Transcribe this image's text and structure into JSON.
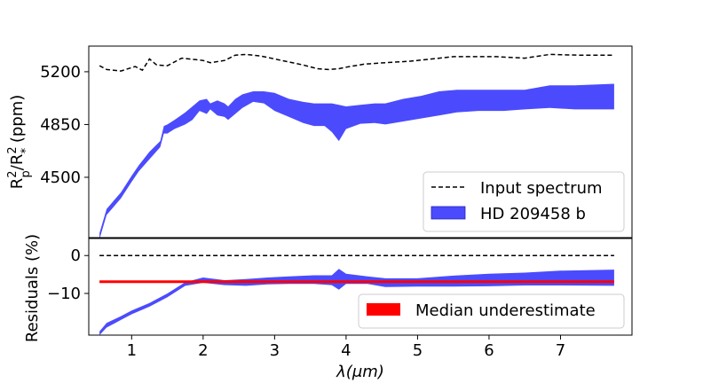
{
  "chart_data": [
    {
      "panel": "top",
      "type": "line",
      "ylabel": "R_p^2/R_*^2 (ppm)",
      "xlim": [
        0.4,
        8.0
      ],
      "ylim": [
        4100,
        5370
      ],
      "yticks": [
        4500,
        4850,
        5200
      ],
      "xticks": [],
      "grid": false,
      "legend": "bottom-right",
      "series": [
        {
          "name": "Input spectrum",
          "kind": "line",
          "style": "dashed",
          "color": "#000000",
          "x": [
            0.55,
            0.65,
            0.85,
            1.05,
            1.15,
            1.25,
            1.35,
            1.5,
            1.7,
            1.9,
            2.0,
            2.1,
            2.3,
            2.45,
            2.6,
            2.8,
            3.0,
            3.2,
            3.4,
            3.6,
            3.75,
            3.9,
            4.0,
            4.25,
            4.55,
            4.9,
            5.2,
            5.5,
            5.75,
            6.1,
            6.5,
            6.85,
            7.25,
            7.75
          ],
          "y": [
            5240,
            5215,
            5205,
            5235,
            5210,
            5285,
            5245,
            5240,
            5290,
            5280,
            5275,
            5260,
            5275,
            5310,
            5315,
            5305,
            5285,
            5265,
            5245,
            5220,
            5215,
            5220,
            5230,
            5250,
            5260,
            5270,
            5285,
            5300,
            5300,
            5300,
            5290,
            5315,
            5310,
            5310
          ]
        },
        {
          "name": "HD 209458 b",
          "kind": "band",
          "color": "#4b4bfd",
          "x": [
            0.55,
            0.65,
            0.85,
            1.0,
            1.1,
            1.25,
            1.4,
            1.45,
            1.5,
            1.6,
            1.75,
            1.85,
            1.95,
            2.05,
            2.1,
            2.2,
            2.3,
            2.35,
            2.45,
            2.55,
            2.7,
            2.85,
            3.0,
            3.2,
            3.4,
            3.55,
            3.7,
            3.8,
            3.9,
            4.0,
            4.2,
            4.4,
            4.55,
            4.8,
            5.05,
            5.3,
            5.55,
            5.85,
            6.2,
            6.5,
            6.85,
            7.2,
            7.75
          ],
          "y_low": [
            4090,
            4250,
            4360,
            4470,
            4540,
            4620,
            4700,
            4790,
            4790,
            4820,
            4850,
            4880,
            4940,
            4920,
            4950,
            4910,
            4900,
            4880,
            4920,
            4960,
            5000,
            4990,
            4940,
            4900,
            4860,
            4840,
            4840,
            4800,
            4740,
            4820,
            4855,
            4860,
            4850,
            4870,
            4890,
            4910,
            4930,
            4940,
            4940,
            4950,
            4960,
            4950,
            4950
          ],
          "y_high": [
            4130,
            4290,
            4400,
            4510,
            4580,
            4670,
            4740,
            4840,
            4850,
            4880,
            4930,
            4970,
            5010,
            5020,
            4990,
            5010,
            4990,
            4970,
            5020,
            5050,
            5070,
            5070,
            5060,
            5020,
            5000,
            4990,
            4990,
            4990,
            4980,
            4970,
            4980,
            4990,
            4990,
            5020,
            5040,
            5070,
            5080,
            5080,
            5080,
            5080,
            5110,
            5110,
            5120
          ]
        }
      ]
    },
    {
      "panel": "bottom",
      "type": "line",
      "xlabel": "λ(μm)",
      "ylabel": "Residuals (%)",
      "xlim": [
        0.4,
        8.0
      ],
      "ylim": [
        -21,
        4.5
      ],
      "yticks": [
        0,
        -10
      ],
      "xticks": [
        1,
        2,
        3,
        4,
        5,
        6,
        7
      ],
      "grid": false,
      "legend": "bottom-right",
      "series": [
        {
          "name": "zero line",
          "kind": "line",
          "style": "dashed",
          "color": "#000000",
          "x": [
            0.55,
            7.75
          ],
          "y": [
            0,
            0
          ]
        },
        {
          "name": "residual band",
          "kind": "band",
          "color": "#4b4bfd",
          "x": [
            0.55,
            0.65,
            0.85,
            1.0,
            1.25,
            1.5,
            1.75,
            2.0,
            2.3,
            2.6,
            2.9,
            3.2,
            3.55,
            3.8,
            3.9,
            4.0,
            4.3,
            4.55,
            5.0,
            5.5,
            6.0,
            6.5,
            7.0,
            7.75
          ],
          "y_low": [
            -21,
            -19,
            -17,
            -15.5,
            -13.5,
            -11,
            -8,
            -7.2,
            -7.8,
            -8,
            -7.6,
            -7.5,
            -7.5,
            -7.8,
            -9,
            -7.5,
            -7.5,
            -8.3,
            -8.2,
            -8.2,
            -8.1,
            -7.9,
            -7.9,
            -8.0
          ],
          "y_high": [
            -20,
            -17.8,
            -16,
            -14.5,
            -12.5,
            -10,
            -7,
            -5.8,
            -6.5,
            -6.2,
            -5.8,
            -5.5,
            -5.2,
            -5.2,
            -3.5,
            -4.8,
            -5.5,
            -6.0,
            -6.0,
            -5.3,
            -4.8,
            -4.5,
            -4.0,
            -3.7
          ]
        },
        {
          "name": "Median underestimate",
          "kind": "line",
          "style": "solid",
          "color": "#ff0000",
          "x": [
            0.55,
            7.75
          ],
          "y": [
            -6.9,
            -6.9
          ]
        }
      ]
    }
  ]
}
